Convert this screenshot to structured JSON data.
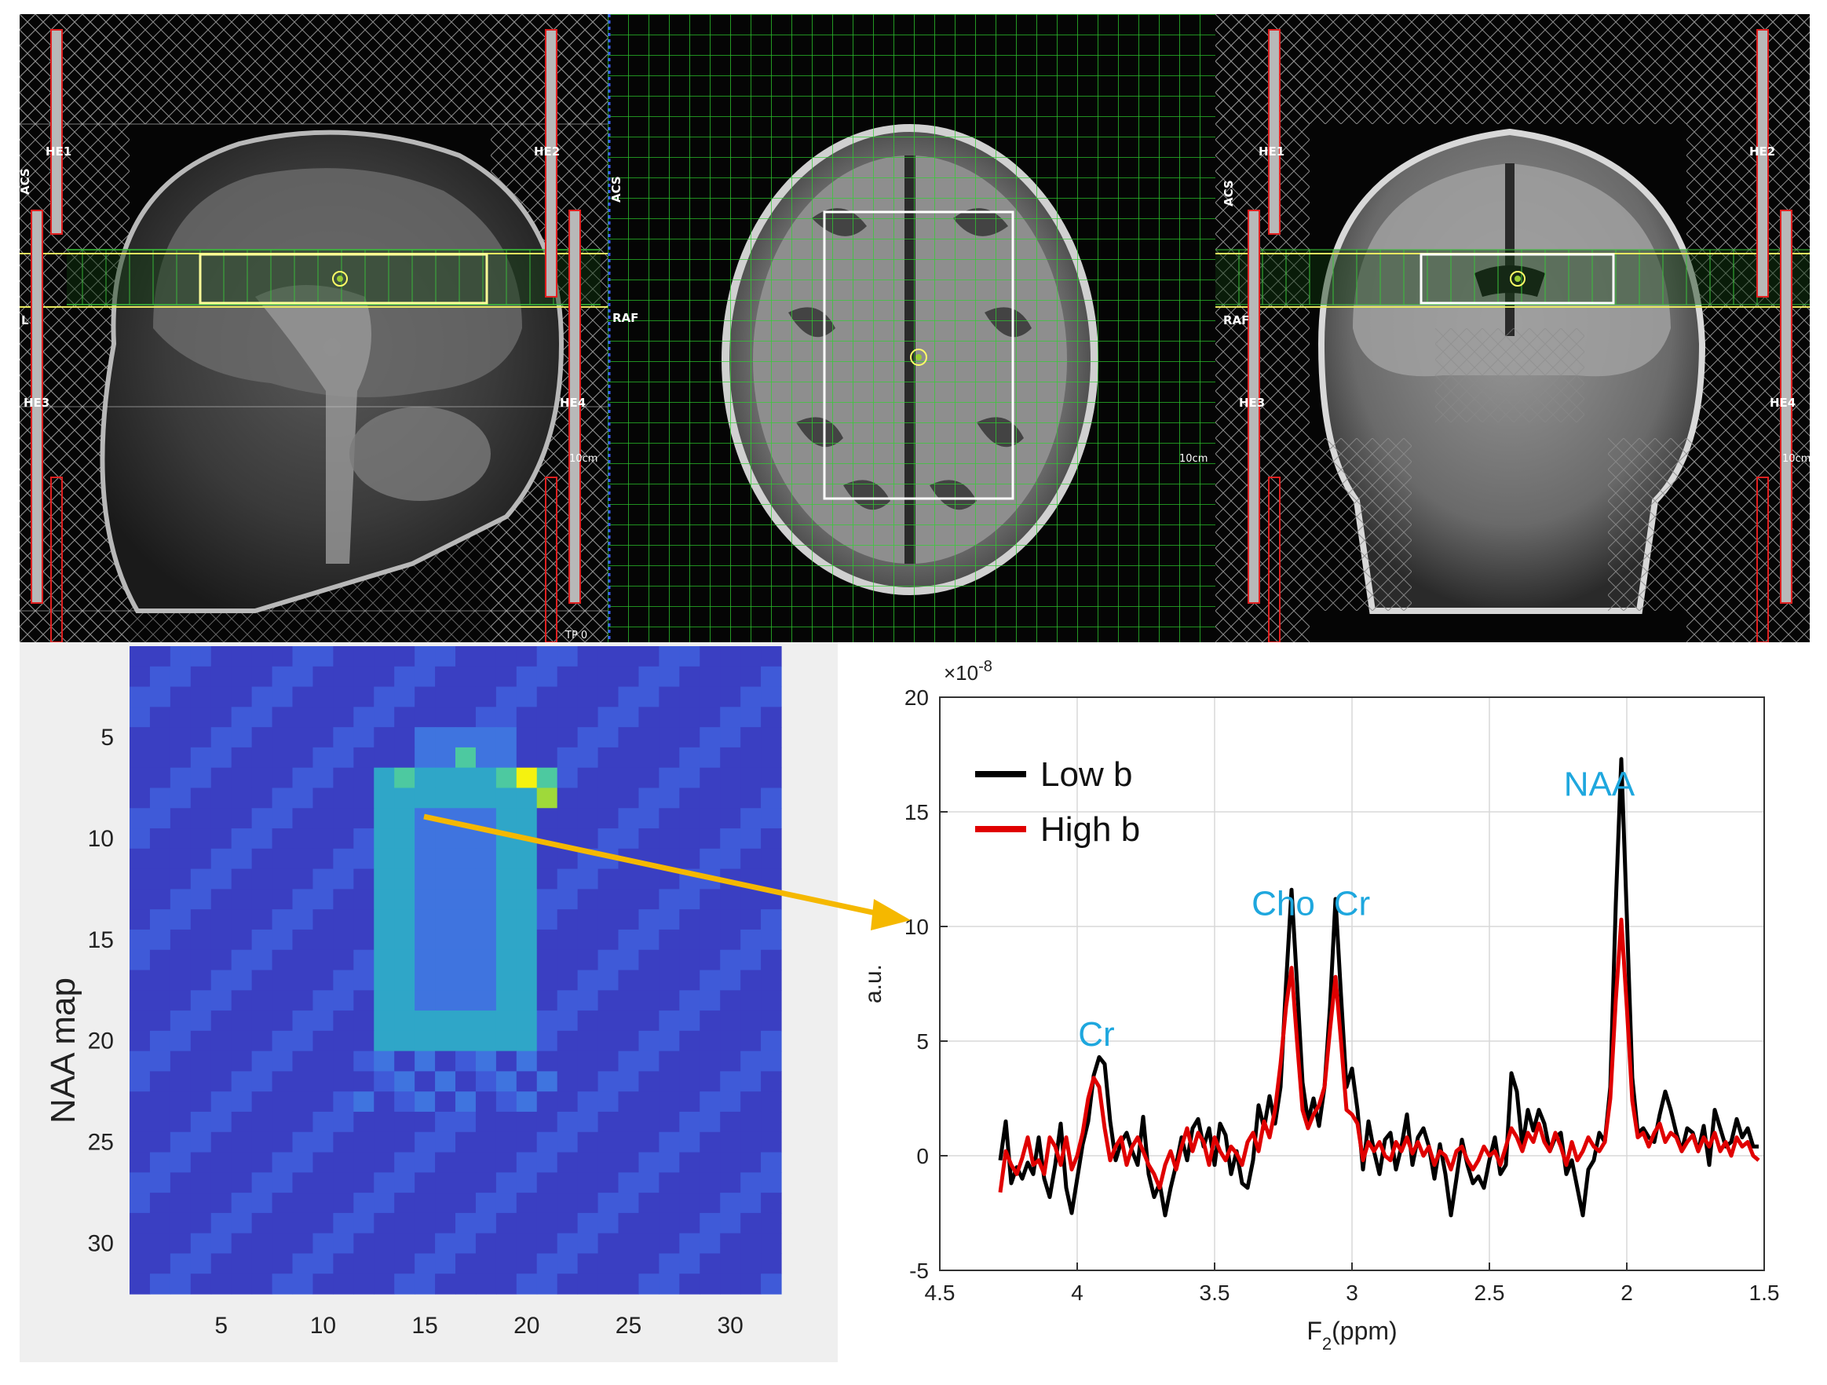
{
  "mri_panels": {
    "sagittal": {
      "coil_labels": [
        "HE1",
        "HE2",
        "HE3",
        "HE4"
      ],
      "side_labels": [
        "ACS",
        "L"
      ],
      "scale_label": "10cm",
      "corner_label": "TP 0"
    },
    "axial": {
      "side_labels": [
        "ACS",
        "RAF"
      ],
      "scale_label": "10cm"
    },
    "coronal": {
      "coil_labels": [
        "HE1",
        "HE2",
        "HE3",
        "HE4"
      ],
      "side_labels": [
        "ACS",
        "RAF"
      ],
      "scale_label": "10cm"
    }
  },
  "naa_map": {
    "ylabel": "NAA map",
    "x_ticks": [
      "5",
      "10",
      "15",
      "20",
      "25",
      "30"
    ],
    "y_ticks": [
      "5",
      "10",
      "15",
      "20",
      "25",
      "30"
    ],
    "grid_size": 32,
    "colors": {
      "background": "#3a3fc2",
      "low": "#3f5ad8",
      "mid": "#2fa6c8",
      "high": "#f5f20f"
    }
  },
  "arrow_color": "#f5b800",
  "chart_data": {
    "type": "line",
    "xlabel": "F2(ppm)",
    "ylabel": "a.u.",
    "exponent_label": "×10-8",
    "xlim": [
      4.5,
      1.5
    ],
    "ylim": [
      -5,
      20
    ],
    "x_ticks": [
      "4.5",
      "4",
      "3.5",
      "3",
      "2.5",
      "2",
      "1.5"
    ],
    "y_ticks": [
      "-5",
      "0",
      "5",
      "10",
      "15",
      "20"
    ],
    "grid": true,
    "legend_position": "top-left",
    "series": [
      {
        "name": "Low b",
        "color": "#000000",
        "points": [
          [
            4.28,
            -0.2
          ],
          [
            4.26,
            1.5
          ],
          [
            4.24,
            -1.2
          ],
          [
            4.22,
            -0.5
          ],
          [
            4.2,
            -1.0
          ],
          [
            4.18,
            -0.3
          ],
          [
            4.16,
            -0.8
          ],
          [
            4.14,
            0.8
          ],
          [
            4.12,
            -1.0
          ],
          [
            4.1,
            -1.8
          ],
          [
            4.08,
            -0.4
          ],
          [
            4.06,
            1.4
          ],
          [
            4.04,
            -1.4
          ],
          [
            4.02,
            -2.5
          ],
          [
            4.0,
            -1.0
          ],
          [
            3.98,
            0.5
          ],
          [
            3.96,
            1.5
          ],
          [
            3.94,
            3.5
          ],
          [
            3.92,
            4.3
          ],
          [
            3.9,
            4.0
          ],
          [
            3.88,
            1.5
          ],
          [
            3.86,
            -0.2
          ],
          [
            3.84,
            0.6
          ],
          [
            3.82,
            1.0
          ],
          [
            3.8,
            0.2
          ],
          [
            3.78,
            -0.4
          ],
          [
            3.76,
            1.7
          ],
          [
            3.74,
            -0.8
          ],
          [
            3.72,
            -1.8
          ],
          [
            3.7,
            -1.2
          ],
          [
            3.68,
            -2.6
          ],
          [
            3.66,
            -1.4
          ],
          [
            3.64,
            -0.4
          ],
          [
            3.62,
            0.8
          ],
          [
            3.6,
            -0.2
          ],
          [
            3.58,
            1.2
          ],
          [
            3.56,
            1.6
          ],
          [
            3.54,
            0.4
          ],
          [
            3.52,
            1.2
          ],
          [
            3.5,
            -0.4
          ],
          [
            3.48,
            1.4
          ],
          [
            3.46,
            0.9
          ],
          [
            3.44,
            -0.8
          ],
          [
            3.42,
            0.2
          ],
          [
            3.4,
            -1.2
          ],
          [
            3.38,
            -1.4
          ],
          [
            3.36,
            -0.2
          ],
          [
            3.34,
            2.2
          ],
          [
            3.32,
            1.2
          ],
          [
            3.3,
            2.6
          ],
          [
            3.28,
            1.4
          ],
          [
            3.26,
            3.0
          ],
          [
            3.24,
            7.5
          ],
          [
            3.22,
            11.6
          ],
          [
            3.2,
            7.5
          ],
          [
            3.18,
            3.2
          ],
          [
            3.16,
            1.5
          ],
          [
            3.14,
            2.5
          ],
          [
            3.12,
            1.3
          ],
          [
            3.1,
            3.0
          ],
          [
            3.08,
            6.5
          ],
          [
            3.06,
            11.2
          ],
          [
            3.04,
            7.0
          ],
          [
            3.02,
            3.0
          ],
          [
            3.0,
            3.8
          ],
          [
            2.98,
            2.0
          ],
          [
            2.96,
            -0.6
          ],
          [
            2.94,
            1.5
          ],
          [
            2.92,
            0.2
          ],
          [
            2.9,
            -0.8
          ],
          [
            2.88,
            0.7
          ],
          [
            2.86,
            1.0
          ],
          [
            2.84,
            -0.6
          ],
          [
            2.82,
            0.4
          ],
          [
            2.8,
            1.8
          ],
          [
            2.78,
            -0.4
          ],
          [
            2.76,
            0.8
          ],
          [
            2.74,
            1.2
          ],
          [
            2.72,
            0.4
          ],
          [
            2.7,
            -1.0
          ],
          [
            2.68,
            0.5
          ],
          [
            2.66,
            -0.8
          ],
          [
            2.64,
            -2.6
          ],
          [
            2.62,
            -1.0
          ],
          [
            2.6,
            0.7
          ],
          [
            2.58,
            -0.4
          ],
          [
            2.56,
            -1.2
          ],
          [
            2.54,
            -0.9
          ],
          [
            2.52,
            -1.4
          ],
          [
            2.5,
            -0.2
          ],
          [
            2.48,
            0.8
          ],
          [
            2.46,
            -0.8
          ],
          [
            2.44,
            -0.4
          ],
          [
            2.42,
            3.6
          ],
          [
            2.4,
            2.8
          ],
          [
            2.38,
            0.4
          ],
          [
            2.36,
            2.0
          ],
          [
            2.34,
            1.1
          ],
          [
            2.32,
            2.0
          ],
          [
            2.3,
            1.4
          ],
          [
            2.28,
            0.2
          ],
          [
            2.26,
            0.8
          ],
          [
            2.24,
            1.0
          ],
          [
            2.22,
            -0.8
          ],
          [
            2.2,
            -0.2
          ],
          [
            2.18,
            -1.4
          ],
          [
            2.16,
            -2.6
          ],
          [
            2.14,
            -0.6
          ],
          [
            2.12,
            -0.2
          ],
          [
            2.1,
            1.0
          ],
          [
            2.08,
            0.6
          ],
          [
            2.06,
            3.0
          ],
          [
            2.04,
            11.0
          ],
          [
            2.02,
            17.3
          ],
          [
            2.0,
            10.5
          ],
          [
            1.98,
            3.4
          ],
          [
            1.96,
            1.0
          ],
          [
            1.94,
            1.2
          ],
          [
            1.92,
            0.8
          ],
          [
            1.9,
            0.6
          ],
          [
            1.88,
            1.8
          ],
          [
            1.86,
            2.8
          ],
          [
            1.84,
            2.0
          ],
          [
            1.82,
            1.0
          ],
          [
            1.8,
            0.2
          ],
          [
            1.78,
            1.2
          ],
          [
            1.76,
            1.0
          ],
          [
            1.74,
            0.2
          ],
          [
            1.72,
            1.3
          ],
          [
            1.7,
            -0.4
          ],
          [
            1.68,
            2.0
          ],
          [
            1.66,
            1.2
          ],
          [
            1.64,
            0.4
          ],
          [
            1.62,
            0.6
          ],
          [
            1.6,
            1.6
          ],
          [
            1.58,
            0.8
          ],
          [
            1.56,
            1.2
          ],
          [
            1.54,
            0.4
          ],
          [
            1.52,
            0.4
          ]
        ]
      },
      {
        "name": "High b",
        "color": "#e00000",
        "points": [
          [
            4.28,
            -1.6
          ],
          [
            4.26,
            0.2
          ],
          [
            4.24,
            -0.4
          ],
          [
            4.22,
            -0.8
          ],
          [
            4.2,
            -0.1
          ],
          [
            4.18,
            0.8
          ],
          [
            4.16,
            -0.4
          ],
          [
            4.14,
            -0.2
          ],
          [
            4.12,
            -0.8
          ],
          [
            4.1,
            0.8
          ],
          [
            4.08,
            0.4
          ],
          [
            4.06,
            -0.4
          ],
          [
            4.04,
            0.8
          ],
          [
            4.02,
            -0.6
          ],
          [
            4.0,
            0.0
          ],
          [
            3.98,
            1.0
          ],
          [
            3.96,
            2.5
          ],
          [
            3.94,
            3.4
          ],
          [
            3.92,
            3.0
          ],
          [
            3.9,
            1.2
          ],
          [
            3.88,
            -0.2
          ],
          [
            3.86,
            0.4
          ],
          [
            3.84,
            0.8
          ],
          [
            3.82,
            -0.4
          ],
          [
            3.8,
            0.4
          ],
          [
            3.78,
            0.8
          ],
          [
            3.76,
            0.2
          ],
          [
            3.74,
            -0.4
          ],
          [
            3.72,
            -0.8
          ],
          [
            3.7,
            -1.4
          ],
          [
            3.68,
            -0.4
          ],
          [
            3.66,
            0.2
          ],
          [
            3.64,
            -0.6
          ],
          [
            3.62,
            0.4
          ],
          [
            3.6,
            1.2
          ],
          [
            3.58,
            0.2
          ],
          [
            3.56,
            1.0
          ],
          [
            3.54,
            0.6
          ],
          [
            3.52,
            -0.4
          ],
          [
            3.5,
            0.8
          ],
          [
            3.48,
            0.2
          ],
          [
            3.46,
            -0.2
          ],
          [
            3.44,
            0.4
          ],
          [
            3.42,
            0.1
          ],
          [
            3.4,
            -0.4
          ],
          [
            3.38,
            0.6
          ],
          [
            3.36,
            1.0
          ],
          [
            3.34,
            0.2
          ],
          [
            3.32,
            1.5
          ],
          [
            3.3,
            0.8
          ],
          [
            3.28,
            2.0
          ],
          [
            3.26,
            4.0
          ],
          [
            3.24,
            6.5
          ],
          [
            3.22,
            8.2
          ],
          [
            3.2,
            5.0
          ],
          [
            3.18,
            2.0
          ],
          [
            3.16,
            1.2
          ],
          [
            3.14,
            1.8
          ],
          [
            3.12,
            2.2
          ],
          [
            3.1,
            3.0
          ],
          [
            3.08,
            5.5
          ],
          [
            3.06,
            7.8
          ],
          [
            3.04,
            5.0
          ],
          [
            3.02,
            2.0
          ],
          [
            3.0,
            1.8
          ],
          [
            2.98,
            1.4
          ],
          [
            2.96,
            -0.2
          ],
          [
            2.94,
            0.6
          ],
          [
            2.92,
            0.2
          ],
          [
            2.9,
            0.6
          ],
          [
            2.88,
            0.0
          ],
          [
            2.86,
            -0.2
          ],
          [
            2.84,
            0.6
          ],
          [
            2.82,
            0.2
          ],
          [
            2.8,
            0.8
          ],
          [
            2.78,
            0.1
          ],
          [
            2.76,
            0.6
          ],
          [
            2.74,
            0.0
          ],
          [
            2.72,
            0.4
          ],
          [
            2.7,
            -0.4
          ],
          [
            2.68,
            0.2
          ],
          [
            2.66,
            0.0
          ],
          [
            2.64,
            -0.6
          ],
          [
            2.62,
            0.2
          ],
          [
            2.6,
            0.4
          ],
          [
            2.58,
            -0.2
          ],
          [
            2.56,
            -0.6
          ],
          [
            2.54,
            -0.2
          ],
          [
            2.52,
            0.4
          ],
          [
            2.5,
            0.0
          ],
          [
            2.48,
            0.2
          ],
          [
            2.46,
            -0.4
          ],
          [
            2.44,
            0.4
          ],
          [
            2.42,
            1.2
          ],
          [
            2.4,
            0.8
          ],
          [
            2.38,
            0.2
          ],
          [
            2.36,
            1.0
          ],
          [
            2.34,
            0.6
          ],
          [
            2.32,
            1.4
          ],
          [
            2.3,
            0.6
          ],
          [
            2.28,
            0.2
          ],
          [
            2.26,
            1.0
          ],
          [
            2.24,
            0.4
          ],
          [
            2.22,
            -0.4
          ],
          [
            2.2,
            0.6
          ],
          [
            2.18,
            -0.2
          ],
          [
            2.16,
            0.2
          ],
          [
            2.14,
            0.8
          ],
          [
            2.12,
            0.4
          ],
          [
            2.1,
            0.2
          ],
          [
            2.08,
            0.6
          ],
          [
            2.06,
            2.5
          ],
          [
            2.04,
            6.8
          ],
          [
            2.02,
            10.3
          ],
          [
            2.0,
            6.5
          ],
          [
            1.98,
            2.4
          ],
          [
            1.96,
            0.8
          ],
          [
            1.94,
            1.0
          ],
          [
            1.92,
            0.4
          ],
          [
            1.9,
            1.0
          ],
          [
            1.88,
            1.4
          ],
          [
            1.86,
            0.6
          ],
          [
            1.84,
            1.0
          ],
          [
            1.82,
            0.8
          ],
          [
            1.8,
            0.2
          ],
          [
            1.78,
            0.6
          ],
          [
            1.76,
            0.9
          ],
          [
            1.74,
            0.2
          ],
          [
            1.72,
            0.8
          ],
          [
            1.7,
            0.4
          ],
          [
            1.68,
            1.0
          ],
          [
            1.66,
            0.2
          ],
          [
            1.64,
            0.6
          ],
          [
            1.62,
            0.0
          ],
          [
            1.6,
            0.8
          ],
          [
            1.58,
            0.4
          ],
          [
            1.56,
            0.6
          ],
          [
            1.54,
            0.0
          ],
          [
            1.52,
            -0.2
          ]
        ]
      }
    ],
    "annotations": [
      {
        "text": "Cr",
        "x": 3.93,
        "y": 4.8
      },
      {
        "text": "Cho",
        "x": 3.25,
        "y": 10.5
      },
      {
        "text": "Cr",
        "x": 3.0,
        "y": 10.5
      },
      {
        "text": "NAA",
        "x": 2.1,
        "y": 15.7
      }
    ]
  }
}
